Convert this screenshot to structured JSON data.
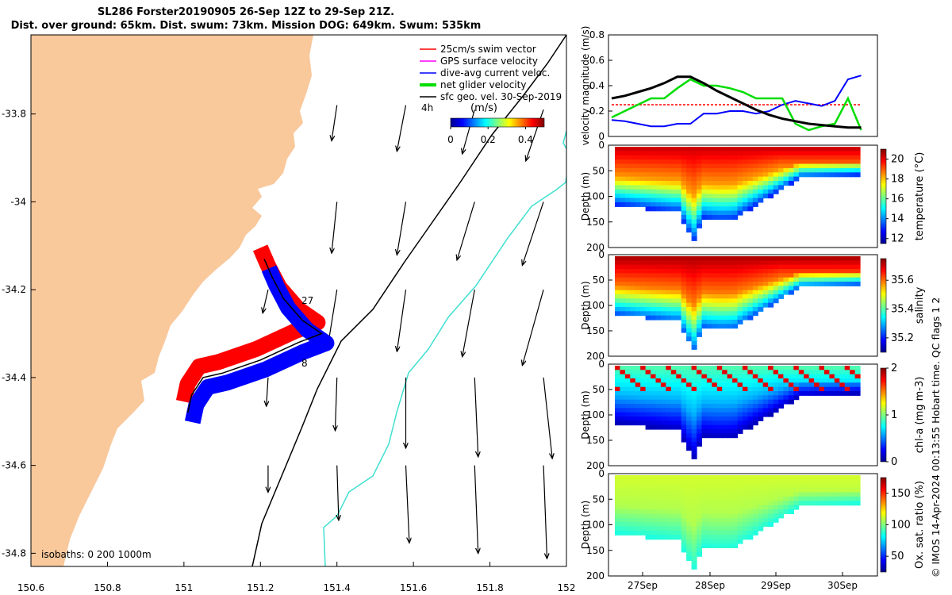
{
  "title": {
    "line1": "SL286 Forster20190905 26-Sep 12Z to 29-Sep 21Z.",
    "line2": "Dist. over ground: 65km. Dist. swum: 73km. Mission DOG: 649km. Swum: 535km"
  },
  "credit": "© IMOS 14-Apr-2024 00:13:55 Hobart time. QC flags 1  2",
  "colors": {
    "land": "#f9c89b",
    "swim": "#ff0000",
    "gps": "#ff00ff",
    "dive": "#0000ff",
    "net": "#00dd00",
    "geo": "#000000",
    "isobath_200": "#40e0d0",
    "isobath_1000": "#000000"
  },
  "chart_data": [
    {
      "type": "scatter",
      "name": "map",
      "xlim": [
        150.6,
        152.0
      ],
      "ylim": [
        -34.83,
        -33.62
      ],
      "xticks": [
        "150.6",
        "150.8",
        "151",
        "151.2",
        "151.4",
        "151.6",
        "151.8",
        "152"
      ],
      "yticks": [
        "-33.8",
        "-34",
        "-34.2",
        "-34.4",
        "-34.6",
        "-34.8"
      ],
      "legend": {
        "position": "top-right",
        "entries": [
          "25cm/s swim vector",
          "GPS surface velocity",
          "dive-avg current veloc.",
          "net glider velocity",
          "sfc geo. vel. 30-Sep-2019"
        ]
      },
      "time_marker": "4h",
      "colorbar": {
        "label": "(m/s)",
        "ticks": [
          "0",
          "0.2",
          "0.4"
        ],
        "range": [
          0,
          0.5
        ]
      },
      "isobath_label": "isobaths: 0   200  1000m",
      "track_labels": [
        "27",
        "8"
      ],
      "glider_track": [
        [
          151.21,
          -34.13
        ],
        [
          151.23,
          -34.17
        ],
        [
          151.26,
          -34.22
        ],
        [
          151.31,
          -34.27
        ],
        [
          151.36,
          -34.3
        ],
        [
          151.3,
          -34.32
        ],
        [
          151.2,
          -34.36
        ],
        [
          151.1,
          -34.39
        ],
        [
          151.05,
          -34.4
        ],
        [
          151.02,
          -34.44
        ],
        [
          151.01,
          -34.48
        ]
      ],
      "geo_vectors": [
        {
          "lon": 151.4,
          "lat": -33.78,
          "u": -0.03,
          "v": -0.2
        },
        {
          "lon": 151.58,
          "lat": -33.78,
          "u": -0.05,
          "v": -0.26
        },
        {
          "lon": 151.76,
          "lat": -33.79,
          "u": -0.07,
          "v": -0.25
        },
        {
          "lon": 151.94,
          "lat": -33.79,
          "u": -0.1,
          "v": -0.29
        },
        {
          "lon": 151.4,
          "lat": -34.0,
          "u": -0.03,
          "v": -0.29
        },
        {
          "lon": 151.58,
          "lat": -34.0,
          "u": -0.05,
          "v": -0.3
        },
        {
          "lon": 151.76,
          "lat": -34.0,
          "u": -0.1,
          "v": -0.33
        },
        {
          "lon": 151.94,
          "lat": -34.0,
          "u": -0.12,
          "v": -0.36
        },
        {
          "lon": 151.22,
          "lat": -34.2,
          "u": -0.03,
          "v": -0.13
        },
        {
          "lon": 151.4,
          "lat": -34.2,
          "u": -0.05,
          "v": -0.31
        },
        {
          "lon": 151.58,
          "lat": -34.2,
          "u": -0.05,
          "v": -0.35
        },
        {
          "lon": 151.76,
          "lat": -34.2,
          "u": -0.07,
          "v": -0.38
        },
        {
          "lon": 151.94,
          "lat": -34.2,
          "u": -0.12,
          "v": -0.43
        },
        {
          "lon": 151.22,
          "lat": -34.4,
          "u": -0.01,
          "v": -0.16
        },
        {
          "lon": 151.4,
          "lat": -34.4,
          "u": -0.01,
          "v": -0.3
        },
        {
          "lon": 151.58,
          "lat": -34.4,
          "u": 0.0,
          "v": -0.4
        },
        {
          "lon": 151.76,
          "lat": -34.4,
          "u": 0.02,
          "v": -0.45
        },
        {
          "lon": 151.94,
          "lat": -34.4,
          "u": 0.05,
          "v": -0.46
        },
        {
          "lon": 151.22,
          "lat": -34.6,
          "u": 0.0,
          "v": -0.15
        },
        {
          "lon": 151.4,
          "lat": -34.6,
          "u": 0.01,
          "v": -0.31
        },
        {
          "lon": 151.58,
          "lat": -34.6,
          "u": 0.02,
          "v": -0.44
        },
        {
          "lon": 151.76,
          "lat": -34.6,
          "u": 0.02,
          "v": -0.5
        },
        {
          "lon": 151.94,
          "lat": -34.6,
          "u": 0.02,
          "v": -0.53
        }
      ]
    },
    {
      "type": "line",
      "name": "velocity",
      "ylabel": "velocity magnitude (m/s)",
      "ylim": [
        0,
        0.8
      ],
      "yticks": [
        "0",
        "0.2",
        "0.4",
        "0.6",
        "0.8"
      ],
      "xlim": [
        0,
        4
      ],
      "x": [
        0,
        0.2,
        0.4,
        0.6,
        0.8,
        1.0,
        1.2,
        1.4,
        1.6,
        1.8,
        2.0,
        2.2,
        2.4,
        2.6,
        2.8,
        3.0,
        3.2,
        3.4,
        3.6,
        3.8
      ],
      "series": [
        {
          "name": "swim",
          "values": [
            0.25,
            0.25,
            0.25,
            0.25,
            0.25,
            0.25,
            0.25,
            0.25,
            0.25,
            0.25,
            0.25,
            0.25,
            0.25,
            0.25,
            0.25,
            0.25,
            0.25,
            0.25,
            0.25,
            0.25
          ]
        },
        {
          "name": "dive",
          "values": [
            0.13,
            0.12,
            0.1,
            0.08,
            0.08,
            0.1,
            0.1,
            0.18,
            0.18,
            0.2,
            0.2,
            0.18,
            0.2,
            0.25,
            0.28,
            0.26,
            0.24,
            0.28,
            0.45,
            0.48
          ]
        },
        {
          "name": "net",
          "values": [
            0.15,
            0.2,
            0.25,
            0.3,
            0.3,
            0.38,
            0.45,
            0.4,
            0.4,
            0.38,
            0.35,
            0.3,
            0.3,
            0.3,
            0.1,
            0.05,
            0.08,
            0.1,
            0.3,
            0.05
          ]
        },
        {
          "name": "geo",
          "values": [
            0.3,
            0.32,
            0.35,
            0.38,
            0.42,
            0.47,
            0.47,
            0.42,
            0.36,
            0.31,
            0.26,
            0.21,
            0.17,
            0.14,
            0.12,
            0.1,
            0.09,
            0.08,
            0.07,
            0.07
          ]
        }
      ]
    },
    {
      "type": "heatmap",
      "name": "temperature",
      "clabel": "temperature (°C)",
      "ylabel": "Depth (m)",
      "ylim": [
        200,
        0
      ],
      "yticks": [
        "0",
        "50",
        "100",
        "150",
        "200"
      ],
      "crange": [
        11.5,
        21
      ],
      "cticks": [
        "12",
        "14",
        "16",
        "18",
        "20"
      ],
      "palette": "jet"
    },
    {
      "type": "heatmap",
      "name": "salinity",
      "clabel": "salinity",
      "ylabel": "Depth (m)",
      "ylim": [
        200,
        0
      ],
      "yticks": [
        "0",
        "50",
        "100",
        "150",
        "200"
      ],
      "crange": [
        35.1,
        35.75
      ],
      "cticks": [
        "35.2",
        "35.4",
        "35.6"
      ],
      "palette": "jet"
    },
    {
      "type": "heatmap",
      "name": "chla",
      "clabel": "chl-a (mg m-3)",
      "ylabel": "Depth (m)",
      "ylim": [
        200,
        0
      ],
      "yticks": [
        "0",
        "50",
        "100",
        "150",
        "200"
      ],
      "crange": [
        0,
        2
      ],
      "cticks": [
        "0",
        "1",
        "2"
      ],
      "palette": "jet"
    },
    {
      "type": "heatmap",
      "name": "oxygen",
      "clabel": "Ox. sat. ratio (%)",
      "ylabel": "Depth (m)",
      "ylim": [
        200,
        0
      ],
      "yticks": [
        "0",
        "50",
        "100",
        "150",
        "200"
      ],
      "crange": [
        25,
        175
      ],
      "cticks": [
        "50",
        "100",
        "150"
      ],
      "palette": "jet",
      "xticks": [
        "27Sep",
        "28Sep",
        "29Sep",
        "30Sep"
      ]
    }
  ]
}
